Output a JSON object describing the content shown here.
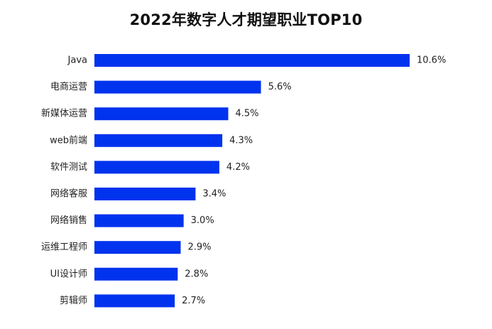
{
  "chart_data": {
    "type": "bar",
    "orientation": "horizontal",
    "title": "2022年数字人才期望职业TOP10",
    "xlabel": "",
    "ylabel": "",
    "categories": [
      "Java",
      "电商运营",
      "新媒体运营",
      "web前端",
      "软件测试",
      "网络客服",
      "网络销售",
      "运维工程师",
      "UI设计师",
      "剪辑师"
    ],
    "values": [
      10.6,
      5.6,
      4.5,
      4.3,
      4.2,
      3.4,
      3.0,
      2.9,
      2.8,
      2.7
    ],
    "value_labels": [
      "10.6%",
      "5.6%",
      "4.5%",
      "4.3%",
      "4.2%",
      "3.4%",
      "3.0%",
      "2.9%",
      "2.8%",
      "2.7%"
    ],
    "xlim": [
      0,
      10.6
    ],
    "grid": false,
    "legend": "none",
    "bar_color": "#0033ee"
  }
}
